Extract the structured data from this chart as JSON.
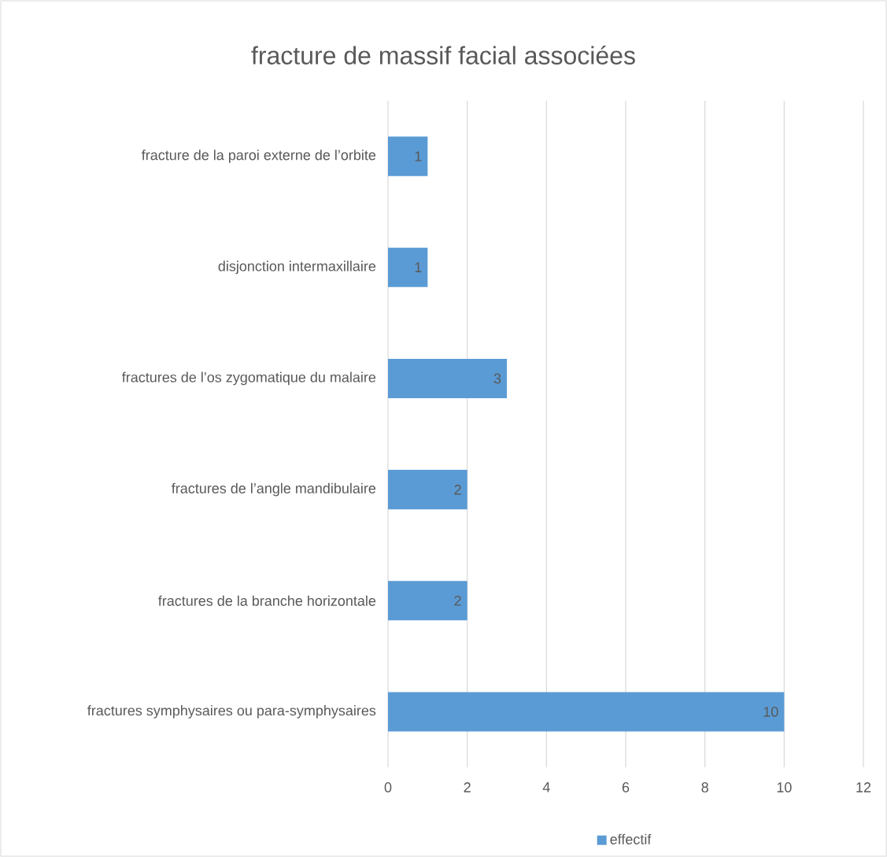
{
  "chart_data": {
    "type": "bar",
    "orientation": "horizontal",
    "title": "fracture de massif facial associées",
    "categories": [
      "fracture de la paroi externe de l’orbite",
      "disjonction intermaxillaire",
      "fractures de l’os zygomatique du malaire",
      "fractures de l’angle mandibulaire",
      "fractures de la branche horizontale",
      "fractures symphysaires ou para-symphysaires"
    ],
    "series": [
      {
        "name": "effectif",
        "color": "#5b9bd5",
        "values": [
          1,
          1,
          3,
          2,
          2,
          10
        ]
      }
    ],
    "xlim": [
      0,
      12
    ],
    "xticks": [
      0,
      2,
      4,
      6,
      8,
      10,
      12
    ],
    "grid": "x",
    "legend": "bottom",
    "data_labels": true
  }
}
